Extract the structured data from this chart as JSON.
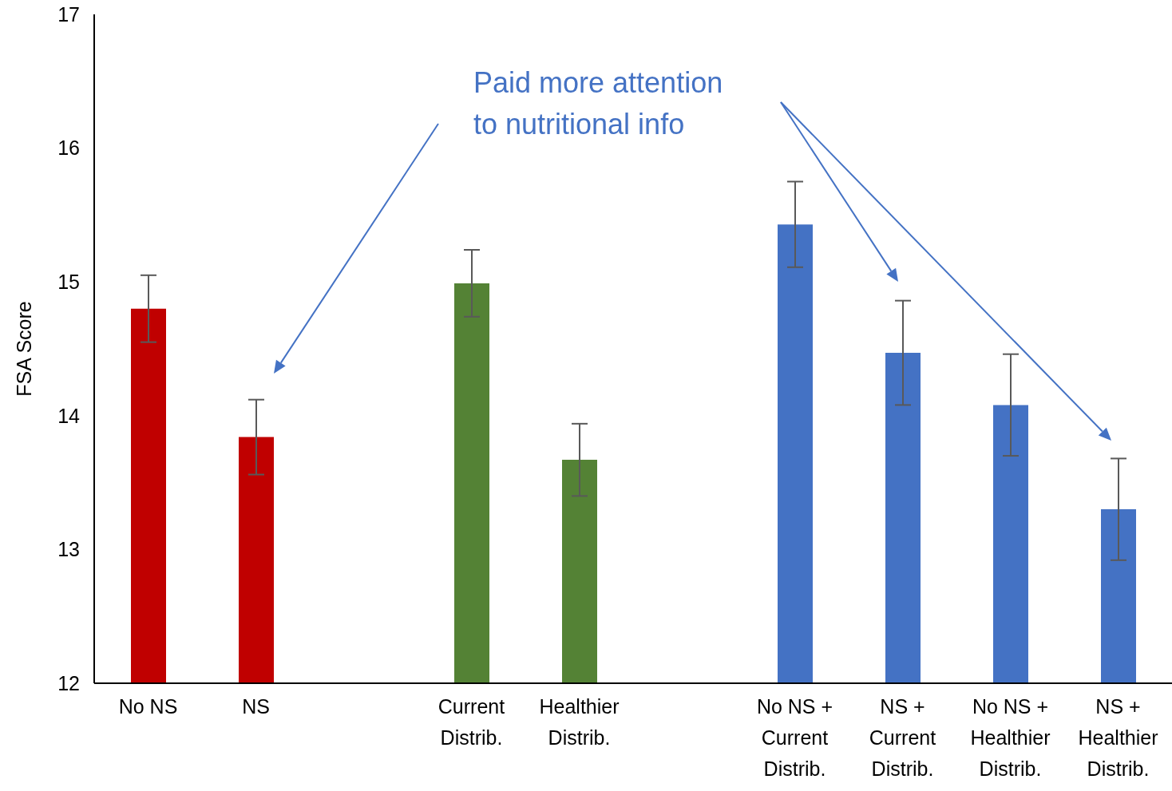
{
  "chart_data": {
    "type": "bar",
    "ylabel": "FSA Score",
    "categories": [
      "No NS",
      "NS",
      null,
      "Current\nDistrib.",
      "Healthier\nDistrib.",
      null,
      "No NS +\nCurrent\nDistrib.",
      "NS +\nCurrent\nDistrib.",
      "No NS +\nHealthier\nDistrib.",
      "NS +\nHealthier\nDistrib."
    ],
    "values": [
      14.8,
      13.84,
      null,
      14.99,
      13.67,
      null,
      15.43,
      14.47,
      14.08,
      13.3
    ],
    "errors": [
      0.25,
      0.28,
      null,
      0.25,
      0.27,
      null,
      0.32,
      0.39,
      0.38,
      0.38
    ],
    "colors": [
      "#c00000",
      "#c00000",
      null,
      "#548235",
      "#548235",
      null,
      "#4472c4",
      "#4472c4",
      "#4472c4",
      "#4472c4"
    ],
    "ylim": [
      12,
      17
    ],
    "yticks": [
      12,
      13,
      14,
      15,
      16,
      17
    ],
    "annotations": [
      "Paid more attention\nto nutritional info"
    ],
    "grid": false,
    "legend": false
  }
}
